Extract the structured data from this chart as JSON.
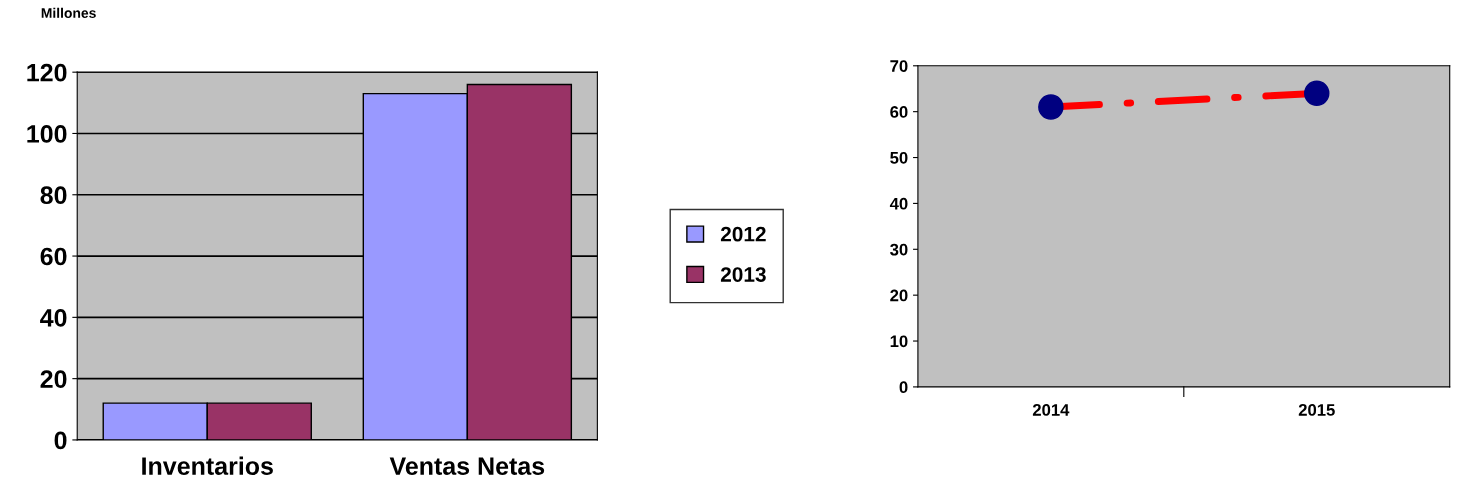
{
  "chart_data": [
    {
      "type": "bar",
      "ylabel": "Millones",
      "categories": [
        "Inventarios",
        "Ventas Netas"
      ],
      "series": [
        {
          "name": "2012",
          "color": "#9999ff",
          "values": [
            12,
            113
          ]
        },
        {
          "name": "2013",
          "color": "#993366",
          "values": [
            12,
            116
          ]
        }
      ],
      "ylim": [
        0,
        120
      ],
      "yticks": [
        0,
        20,
        40,
        60,
        80,
        100,
        120
      ],
      "grid": "y",
      "legend": "right"
    },
    {
      "type": "line",
      "categories": [
        "2014",
        "2015"
      ],
      "series": [
        {
          "color": "#ff0000",
          "colors": [
            "#000080",
            "#000080"
          ],
          "values": [
            61,
            64
          ]
        }
      ],
      "ylim": [
        0,
        70
      ],
      "yticks": [
        0,
        10,
        20,
        30,
        40,
        50,
        60,
        70
      ],
      "marker": "circle",
      "line_style": "dashdot",
      "grid": false
    }
  ]
}
